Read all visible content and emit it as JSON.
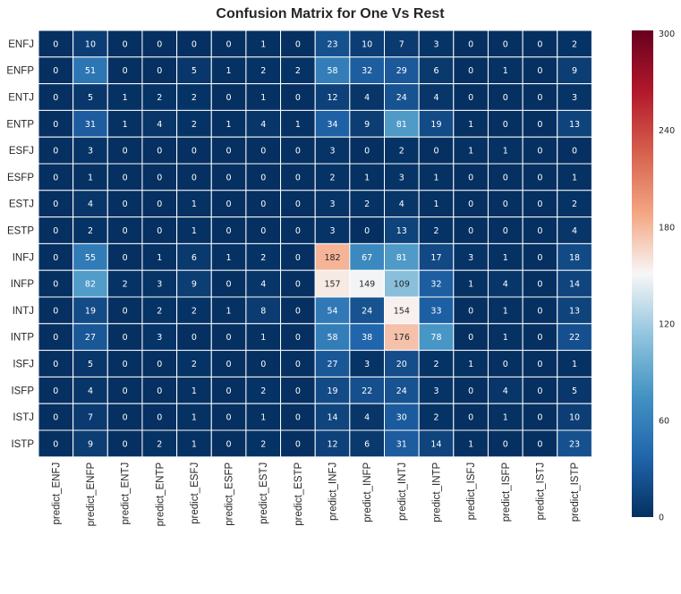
{
  "chart_data": {
    "type": "heatmap",
    "title": "Confusion Matrix for One Vs Rest",
    "row_labels": [
      "ENFJ",
      "ENFP",
      "ENTJ",
      "ENTP",
      "ESFJ",
      "ESFP",
      "ESTJ",
      "ESTP",
      "INFJ",
      "INFP",
      "INTJ",
      "INTP",
      "ISFJ",
      "ISFP",
      "ISTJ",
      "ISTP"
    ],
    "col_labels": [
      "predict_ENFJ",
      "predict_ENFP",
      "predict_ENTJ",
      "predict_ENTP",
      "predict_ESFJ",
      "predict_ESFP",
      "predict_ESTJ",
      "predict_ESTP",
      "predict_INFJ",
      "predict_INFP",
      "predict_INTJ",
      "predict_INTP",
      "predict_ISFJ",
      "predict_ISFP",
      "predict_ISTJ",
      "predict_ISTP"
    ],
    "values": [
      [
        0,
        10,
        0,
        0,
        0,
        0,
        1,
        0,
        23,
        10,
        7,
        3,
        0,
        0,
        0,
        2
      ],
      [
        0,
        51,
        0,
        0,
        5,
        1,
        2,
        2,
        58,
        32,
        29,
        6,
        0,
        1,
        0,
        9
      ],
      [
        0,
        5,
        1,
        2,
        2,
        0,
        1,
        0,
        12,
        4,
        24,
        4,
        0,
        0,
        0,
        3
      ],
      [
        0,
        31,
        1,
        4,
        2,
        1,
        4,
        1,
        34,
        9,
        81,
        19,
        1,
        0,
        0,
        13
      ],
      [
        0,
        3,
        0,
        0,
        0,
        0,
        0,
        0,
        3,
        0,
        2,
        0,
        1,
        1,
        0,
        0
      ],
      [
        0,
        1,
        0,
        0,
        0,
        0,
        0,
        0,
        2,
        1,
        3,
        1,
        0,
        0,
        0,
        1
      ],
      [
        0,
        4,
        0,
        0,
        1,
        0,
        0,
        0,
        3,
        2,
        4,
        1,
        0,
        0,
        0,
        2
      ],
      [
        0,
        2,
        0,
        0,
        1,
        0,
        0,
        0,
        3,
        0,
        13,
        2,
        0,
        0,
        0,
        4
      ],
      [
        0,
        55,
        0,
        1,
        6,
        1,
        2,
        0,
        182,
        67,
        81,
        17,
        3,
        1,
        0,
        18
      ],
      [
        0,
        82,
        2,
        3,
        9,
        0,
        4,
        0,
        157,
        149,
        109,
        32,
        1,
        4,
        0,
        14
      ],
      [
        0,
        19,
        0,
        2,
        2,
        1,
        8,
        0,
        54,
        24,
        154,
        33,
        0,
        1,
        0,
        13
      ],
      [
        0,
        27,
        0,
        3,
        0,
        0,
        1,
        0,
        58,
        38,
        176,
        78,
        0,
        1,
        0,
        22
      ],
      [
        0,
        5,
        0,
        0,
        2,
        0,
        0,
        0,
        27,
        3,
        20,
        2,
        1,
        0,
        0,
        1
      ],
      [
        0,
        4,
        0,
        0,
        1,
        0,
        2,
        0,
        19,
        22,
        24,
        3,
        0,
        4,
        0,
        5
      ],
      [
        0,
        7,
        0,
        0,
        1,
        0,
        1,
        0,
        14,
        4,
        30,
        2,
        0,
        1,
        0,
        10
      ],
      [
        0,
        9,
        0,
        2,
        1,
        0,
        2,
        0,
        12,
        6,
        31,
        14,
        1,
        0,
        0,
        23
      ]
    ],
    "colormap": "RdBu_r",
    "vmin": 0,
    "vmax": 302,
    "colorbar_ticks": [
      0,
      60,
      120,
      180,
      240,
      300
    ],
    "annotations": true,
    "legend_position": "right"
  }
}
